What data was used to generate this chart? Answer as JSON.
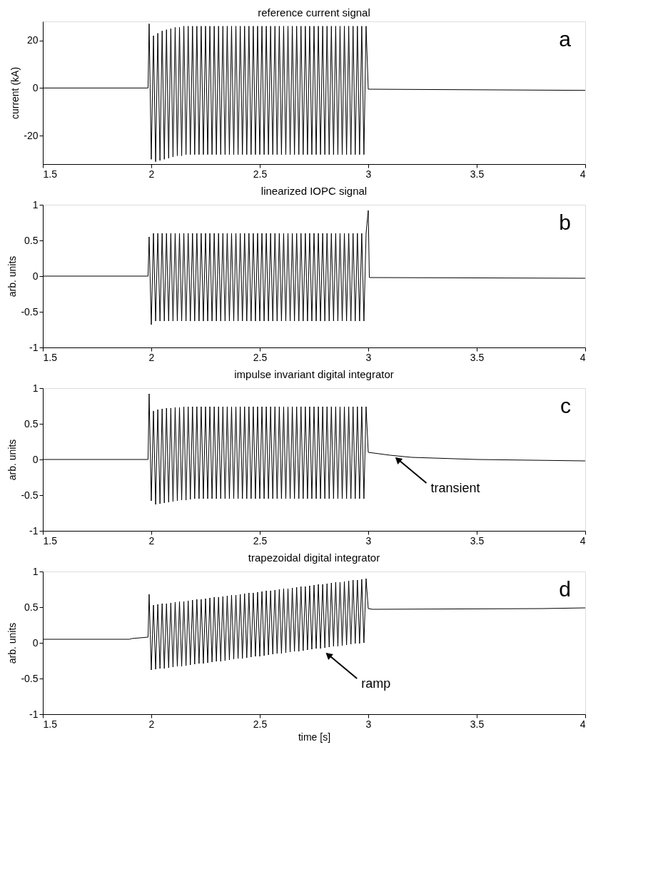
{
  "chart_data": [
    {
      "type": "line",
      "title": "reference current signal",
      "ylabel": "current (kA)",
      "annotations": [
        "a"
      ],
      "xlim": [
        1.5,
        4
      ],
      "xticks": [
        1.5,
        2,
        2.5,
        3,
        3.5,
        4
      ],
      "ylim": [
        -32,
        28
      ],
      "yticks": [
        -20,
        0,
        20
      ],
      "x": [
        1.5,
        1.98,
        1.985,
        1.99,
        2,
        2.01,
        2.02,
        2.03,
        2.04,
        2.05,
        2.06,
        2.07,
        2.08,
        2.09,
        2.1,
        2.11,
        2.12,
        2.13,
        2.14,
        2.15,
        2.16,
        2.17,
        2.18,
        2.19,
        2.2,
        2.21,
        2.22,
        2.23,
        2.24,
        2.25,
        2.26,
        2.27,
        2.28,
        2.29,
        2.3,
        2.31,
        2.32,
        2.33,
        2.34,
        2.35,
        2.36,
        2.37,
        2.38,
        2.39,
        2.4,
        2.41,
        2.42,
        2.43,
        2.44,
        2.45,
        2.46,
        2.47,
        2.48,
        2.49,
        2.5,
        2.51,
        2.52,
        2.53,
        2.54,
        2.55,
        2.56,
        2.57,
        2.58,
        2.59,
        2.6,
        2.61,
        2.62,
        2.63,
        2.64,
        2.65,
        2.66,
        2.67,
        2.68,
        2.69,
        2.7,
        2.71,
        2.72,
        2.73,
        2.74,
        2.75,
        2.76,
        2.77,
        2.78,
        2.79,
        2.8,
        2.81,
        2.82,
        2.83,
        2.84,
        2.85,
        2.86,
        2.87,
        2.88,
        2.89,
        2.9,
        2.91,
        2.92,
        2.93,
        2.94,
        2.95,
        2.96,
        2.97,
        2.98,
        2.99,
        3,
        4
      ],
      "series": [
        {
          "color": "#000000",
          "values": [
            0,
            0,
            0,
            27,
            -30,
            22,
            -31,
            23,
            -30.5,
            24,
            -30,
            24.5,
            -29.5,
            25,
            -29,
            25.5,
            -28.5,
            25.5,
            -28.5,
            26,
            -28,
            26,
            -28,
            26,
            -28,
            26,
            -28,
            26,
            -28,
            26,
            -28,
            26,
            -28,
            26,
            -28,
            26,
            -28,
            26,
            -28,
            26,
            -28,
            26,
            -28,
            26,
            -28,
            26,
            -28,
            26,
            -28,
            26,
            -28,
            26,
            -28,
            26,
            -28,
            26,
            -28,
            26,
            -28,
            26,
            -28,
            26,
            -28,
            26,
            -28,
            26,
            -28,
            26,
            -28,
            26,
            -28,
            26,
            -28,
            26,
            -28,
            26,
            -28,
            26,
            -28,
            26,
            -28,
            26,
            -28,
            26,
            -28,
            26,
            -28,
            26,
            -28,
            26,
            -28,
            26,
            -28,
            26,
            -28,
            26,
            -28,
            26,
            -28,
            26,
            -28,
            26,
            -28,
            26,
            -0.5,
            -1
          ]
        }
      ]
    },
    {
      "type": "line",
      "title": "linearized IOPC signal",
      "ylabel": "arb. units",
      "annotations": [
        "b"
      ],
      "xlim": [
        1.5,
        4
      ],
      "xticks": [
        1.5,
        2,
        2.5,
        3,
        3.5,
        4
      ],
      "ylim": [
        -1,
        1
      ],
      "yticks": [
        -1,
        -0.5,
        0,
        0.5,
        1
      ],
      "x": [
        1.5,
        1.98,
        1.985,
        1.99,
        2,
        2.01,
        2.02,
        2.03,
        2.04,
        2.05,
        2.06,
        2.07,
        2.08,
        2.09,
        2.1,
        2.11,
        2.12,
        2.13,
        2.14,
        2.15,
        2.16,
        2.17,
        2.18,
        2.19,
        2.2,
        2.21,
        2.22,
        2.23,
        2.24,
        2.25,
        2.26,
        2.27,
        2.28,
        2.29,
        2.3,
        2.31,
        2.32,
        2.33,
        2.34,
        2.35,
        2.36,
        2.37,
        2.38,
        2.39,
        2.4,
        2.41,
        2.42,
        2.43,
        2.44,
        2.45,
        2.46,
        2.47,
        2.48,
        2.49,
        2.5,
        2.51,
        2.52,
        2.53,
        2.54,
        2.55,
        2.56,
        2.57,
        2.58,
        2.59,
        2.6,
        2.61,
        2.62,
        2.63,
        2.64,
        2.65,
        2.66,
        2.67,
        2.68,
        2.69,
        2.7,
        2.71,
        2.72,
        2.73,
        2.74,
        2.75,
        2.76,
        2.77,
        2.78,
        2.79,
        2.8,
        2.81,
        2.82,
        2.83,
        2.84,
        2.85,
        2.86,
        2.87,
        2.88,
        2.89,
        2.9,
        2.91,
        2.92,
        2.93,
        2.94,
        2.95,
        2.96,
        2.97,
        2.98,
        2.99,
        3,
        3.005,
        4
      ],
      "series": [
        {
          "color": "#000000",
          "values": [
            0,
            0,
            0,
            0.55,
            -0.68,
            0.6,
            -0.63,
            0.6,
            -0.63,
            0.6,
            -0.63,
            0.6,
            -0.63,
            0.6,
            -0.63,
            0.6,
            -0.63,
            0.6,
            -0.63,
            0.6,
            -0.63,
            0.6,
            -0.63,
            0.6,
            -0.63,
            0.6,
            -0.63,
            0.6,
            -0.63,
            0.6,
            -0.63,
            0.6,
            -0.63,
            0.6,
            -0.63,
            0.6,
            -0.63,
            0.6,
            -0.63,
            0.6,
            -0.63,
            0.6,
            -0.63,
            0.6,
            -0.63,
            0.6,
            -0.63,
            0.6,
            -0.63,
            0.6,
            -0.63,
            0.6,
            -0.63,
            0.6,
            -0.63,
            0.6,
            -0.63,
            0.6,
            -0.63,
            0.6,
            -0.63,
            0.6,
            -0.63,
            0.6,
            -0.63,
            0.6,
            -0.63,
            0.6,
            -0.63,
            0.6,
            -0.63,
            0.6,
            -0.63,
            0.6,
            -0.63,
            0.6,
            -0.63,
            0.6,
            -0.63,
            0.6,
            -0.63,
            0.6,
            -0.63,
            0.6,
            -0.63,
            0.6,
            -0.63,
            0.6,
            -0.63,
            0.6,
            -0.63,
            0.6,
            -0.63,
            0.6,
            -0.63,
            0.6,
            -0.63,
            0.6,
            -0.63,
            0.6,
            -0.63,
            0.6,
            -0.63,
            0.6,
            0.92,
            -0.02,
            -0.03
          ]
        }
      ]
    },
    {
      "type": "line",
      "title": "impulse invariant digital integrator",
      "ylabel": "arb. units",
      "annotations": [
        "c",
        {
          "text": "transient",
          "x": 3.12,
          "y": 0.05
        }
      ],
      "xlim": [
        1.5,
        4
      ],
      "xticks": [
        1.5,
        2,
        2.5,
        3,
        3.5,
        4
      ],
      "ylim": [
        -1,
        1
      ],
      "yticks": [
        -1,
        -0.5,
        0,
        0.5,
        1
      ],
      "x": [
        1.5,
        1.98,
        1.985,
        1.99,
        2,
        2.01,
        2.02,
        2.03,
        2.04,
        2.05,
        2.06,
        2.07,
        2.08,
        2.09,
        2.1,
        2.11,
        2.12,
        2.13,
        2.14,
        2.15,
        2.16,
        2.17,
        2.18,
        2.19,
        2.2,
        2.21,
        2.22,
        2.23,
        2.24,
        2.25,
        2.26,
        2.27,
        2.28,
        2.29,
        2.3,
        2.31,
        2.32,
        2.33,
        2.34,
        2.35,
        2.36,
        2.37,
        2.38,
        2.39,
        2.4,
        2.41,
        2.42,
        2.43,
        2.44,
        2.45,
        2.46,
        2.47,
        2.48,
        2.49,
        2.5,
        2.51,
        2.52,
        2.53,
        2.54,
        2.55,
        2.56,
        2.57,
        2.58,
        2.59,
        2.6,
        2.61,
        2.62,
        2.63,
        2.64,
        2.65,
        2.66,
        2.67,
        2.68,
        2.69,
        2.7,
        2.71,
        2.72,
        2.73,
        2.74,
        2.75,
        2.76,
        2.77,
        2.78,
        2.79,
        2.8,
        2.81,
        2.82,
        2.83,
        2.84,
        2.85,
        2.86,
        2.87,
        2.88,
        2.89,
        2.9,
        2.91,
        2.92,
        2.93,
        2.94,
        2.95,
        2.96,
        2.97,
        2.98,
        2.99,
        3,
        3.1,
        3.2,
        3.5,
        4
      ],
      "series": [
        {
          "color": "#000000",
          "values": [
            0,
            0,
            0,
            0.92,
            -0.58,
            0.68,
            -0.63,
            0.7,
            -0.62,
            0.71,
            -0.61,
            0.72,
            -0.6,
            0.72,
            -0.59,
            0.73,
            -0.58,
            0.73,
            -0.57,
            0.74,
            -0.57,
            0.74,
            -0.56,
            0.74,
            -0.55,
            0.74,
            -0.55,
            0.74,
            -0.55,
            0.74,
            -0.55,
            0.74,
            -0.55,
            0.74,
            -0.55,
            0.74,
            -0.55,
            0.74,
            -0.55,
            0.74,
            -0.55,
            0.74,
            -0.55,
            0.74,
            -0.55,
            0.74,
            -0.55,
            0.74,
            -0.55,
            0.74,
            -0.55,
            0.74,
            -0.55,
            0.74,
            -0.55,
            0.74,
            -0.55,
            0.74,
            -0.55,
            0.74,
            -0.55,
            0.74,
            -0.55,
            0.74,
            -0.55,
            0.74,
            -0.55,
            0.74,
            -0.55,
            0.74,
            -0.55,
            0.74,
            -0.55,
            0.74,
            -0.55,
            0.74,
            -0.55,
            0.74,
            -0.55,
            0.74,
            -0.55,
            0.74,
            -0.55,
            0.74,
            -0.55,
            0.74,
            -0.55,
            0.74,
            -0.55,
            0.74,
            -0.55,
            0.74,
            -0.55,
            0.74,
            -0.55,
            0.74,
            -0.55,
            0.74,
            -0.55,
            0.74,
            -0.55,
            0.74,
            -0.55,
            0.74,
            0.1,
            0.06,
            0.03,
            0,
            -0.02
          ]
        }
      ]
    },
    {
      "type": "line",
      "title": "trapezoidal digital integrator",
      "xlabel": "time [s]",
      "ylabel": "arb. units",
      "annotations": [
        "d",
        {
          "text": "ramp",
          "x": 2.8,
          "y": -0.12
        }
      ],
      "xlim": [
        1.5,
        4
      ],
      "xticks": [
        1.5,
        2,
        2.5,
        3,
        3.5,
        4
      ],
      "ylim": [
        -1,
        1
      ],
      "yticks": [
        -1,
        -0.5,
        0,
        0.5,
        1
      ],
      "x": [
        1.5,
        1.9,
        1.91,
        1.985,
        1.99,
        2,
        2.01,
        2.02,
        2.03,
        2.04,
        2.05,
        2.06,
        2.07,
        2.08,
        2.09,
        2.1,
        2.11,
        2.12,
        2.13,
        2.14,
        2.15,
        2.16,
        2.17,
        2.18,
        2.19,
        2.2,
        2.21,
        2.22,
        2.23,
        2.24,
        2.25,
        2.26,
        2.27,
        2.28,
        2.29,
        2.3,
        2.31,
        2.32,
        2.33,
        2.34,
        2.35,
        2.36,
        2.37,
        2.38,
        2.39,
        2.4,
        2.41,
        2.42,
        2.43,
        2.44,
        2.45,
        2.46,
        2.47,
        2.48,
        2.49,
        2.5,
        2.51,
        2.52,
        2.53,
        2.54,
        2.55,
        2.56,
        2.57,
        2.58,
        2.59,
        2.6,
        2.61,
        2.62,
        2.63,
        2.64,
        2.65,
        2.66,
        2.67,
        2.68,
        2.69,
        2.7,
        2.71,
        2.72,
        2.73,
        2.74,
        2.75,
        2.76,
        2.77,
        2.78,
        2.79,
        2.8,
        2.81,
        2.82,
        2.83,
        2.84,
        2.85,
        2.86,
        2.87,
        2.88,
        2.89,
        2.9,
        2.91,
        2.92,
        2.93,
        2.94,
        2.95,
        2.96,
        2.97,
        2.98,
        2.99,
        3,
        3.02,
        3.8,
        4
      ],
      "series": [
        {
          "color": "#000000",
          "values": [
            0.05,
            0.05,
            0.06,
            0.08,
            0.68,
            -0.38,
            0.53,
            -0.37,
            0.54,
            -0.36,
            0.55,
            -0.36,
            0.55,
            -0.35,
            0.56,
            -0.34,
            0.57,
            -0.33,
            0.58,
            -0.33,
            0.58,
            -0.32,
            0.59,
            -0.31,
            0.6,
            -0.3,
            0.61,
            -0.29,
            0.61,
            -0.29,
            0.62,
            -0.28,
            0.63,
            -0.27,
            0.64,
            -0.26,
            0.64,
            -0.26,
            0.65,
            -0.25,
            0.66,
            -0.24,
            0.67,
            -0.23,
            0.67,
            -0.22,
            0.68,
            -0.22,
            0.69,
            -0.21,
            0.7,
            -0.2,
            0.7,
            -0.19,
            0.71,
            -0.19,
            0.72,
            -0.18,
            0.73,
            -0.17,
            0.73,
            -0.16,
            0.74,
            -0.15,
            0.75,
            -0.15,
            0.76,
            -0.14,
            0.76,
            -0.13,
            0.77,
            -0.12,
            0.78,
            -0.12,
            0.79,
            -0.11,
            0.79,
            -0.1,
            0.8,
            -0.09,
            0.81,
            -0.08,
            0.82,
            -0.08,
            0.82,
            -0.07,
            0.83,
            -0.06,
            0.84,
            -0.05,
            0.85,
            -0.05,
            0.85,
            -0.04,
            0.86,
            -0.03,
            0.87,
            -0.02,
            0.88,
            -0.01,
            0.88,
            -0.01,
            0.89,
            0,
            0.9,
            0.48,
            0.47,
            0.48,
            0.49
          ]
        }
      ]
    }
  ]
}
